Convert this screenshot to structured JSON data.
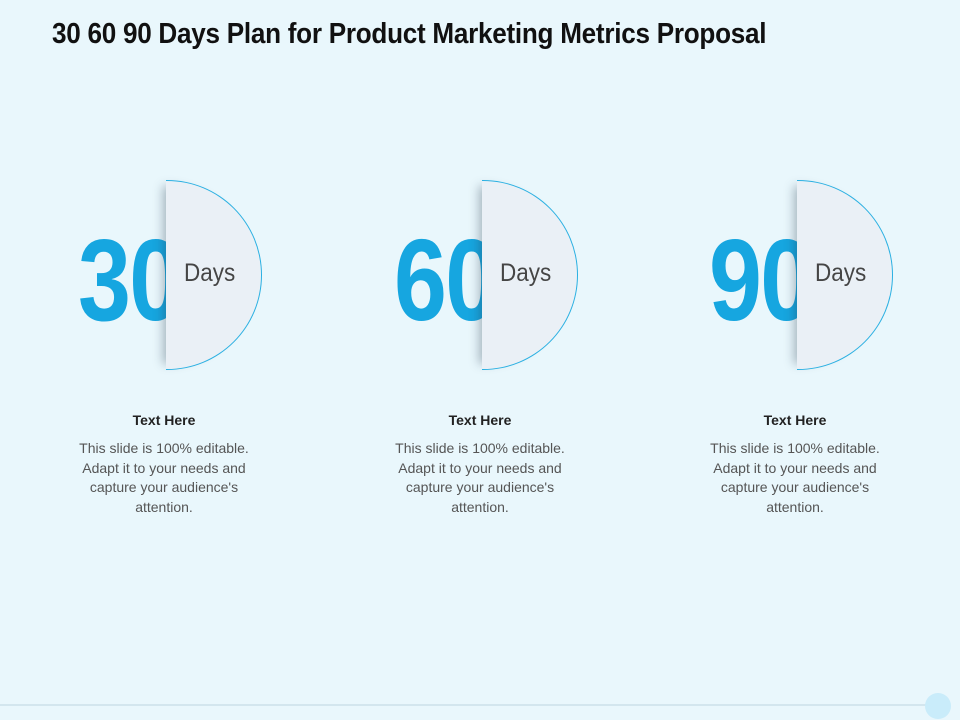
{
  "slide": {
    "title": "30 60 90 Days Plan for Product Marketing Metrics Proposal"
  },
  "colors": {
    "background": "#e9f7fc",
    "accent": "#16a6e0",
    "half_circle_fill": "#eaf0f6"
  },
  "items": [
    {
      "number": "30",
      "unit": "Days",
      "heading": "Text Here",
      "body": "This slide is 100% editable. Adapt it to your needs and capture your audience's attention."
    },
    {
      "number": "60",
      "unit": "Days",
      "heading": "Text Here",
      "body": "This slide is 100% editable. Adapt it to your needs and capture your audience's attention."
    },
    {
      "number": "90",
      "unit": "Days",
      "heading": "Text Here",
      "body": "This slide is 100% editable. Adapt it to your needs and capture your audience's attention."
    }
  ]
}
